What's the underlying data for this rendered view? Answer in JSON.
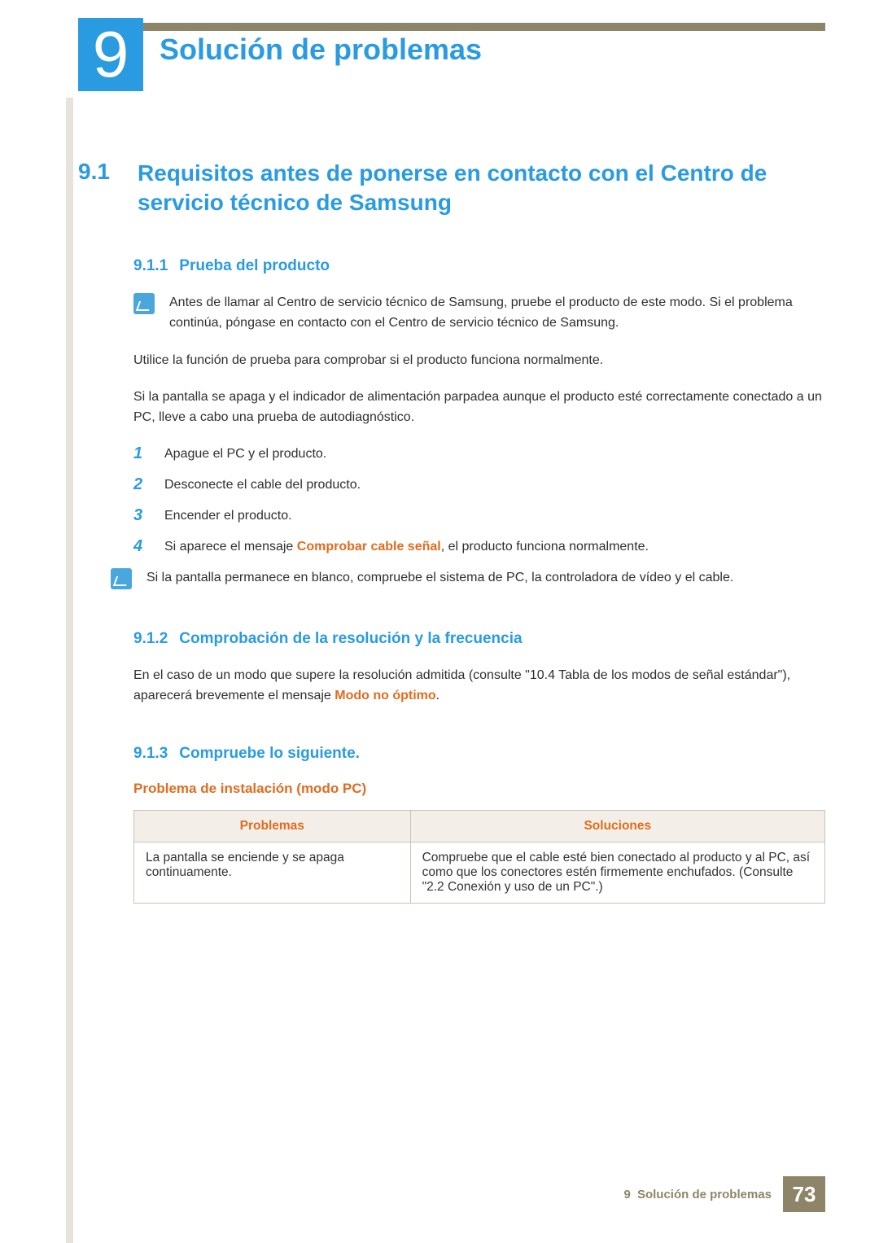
{
  "colors": {
    "accent_blue": "#2a9be0",
    "accent_orange": "#e06c1f",
    "band_olive": "#8e8568",
    "left_rule": "#e5e3dc",
    "table_border": "#c9c3b6",
    "table_header_bg": "#f3efe8",
    "body_text": "#2f2f2f"
  },
  "chapter": {
    "number": "9",
    "title": "Solución de problemas"
  },
  "section": {
    "number": "9.1",
    "title": "Requisitos antes de ponerse en contacto con el Centro de servicio técnico de Samsung"
  },
  "sub1": {
    "number": "9.1.1",
    "title": "Prueba del producto",
    "note": "Antes de llamar al Centro de servicio técnico de Samsung, pruebe el producto de este modo. Si el problema continúa, póngase en contacto con el Centro de servicio técnico de Samsung.",
    "p1": "Utilice la función de prueba para comprobar si el producto funciona normalmente.",
    "p2": "Si la pantalla se apaga y el indicador de alimentación parpadea aunque el producto esté correctamente conectado a un PC, lleve a cabo una prueba de autodiagnóstico.",
    "steps": [
      "Apague el PC y el producto.",
      "Desconecte el cable del producto.",
      "Encender el producto.",
      ""
    ],
    "step4_prefix": "Si aparece el mensaje ",
    "step4_bold": "Comprobar cable señal",
    "step4_suffix": ", el producto funciona normalmente.",
    "note2": "Si la pantalla permanece en blanco, compruebe el sistema de PC, la controladora de vídeo y el cable."
  },
  "sub2": {
    "number": "9.1.2",
    "title": "Comprobación de la resolución y la frecuencia",
    "p_prefix": "En el caso de un modo que supere la resolución admitida (consulte \"10.4 Tabla de los modos de señal estándar\"), aparecerá brevemente el mensaje ",
    "p_bold": "Modo no óptimo",
    "p_suffix": "."
  },
  "sub3": {
    "number": "9.1.3",
    "title": "Compruebe lo siguiente.",
    "h4": "Problema de instalación (modo PC)",
    "table": {
      "col_problems": "Problemas",
      "col_solutions": "Soluciones",
      "rows": [
        {
          "problem": "La pantalla se enciende y se apaga continuamente.",
          "solution": "Compruebe que el cable esté bien conectado al producto y al PC, así como que los conectores estén firmemente enchufados. (Consulte \"2.2 Conexión y uso de un PC\".)"
        }
      ]
    }
  },
  "footer": {
    "chapter_num": "9",
    "chapter_title": "Solución de problemas",
    "page": "73"
  }
}
